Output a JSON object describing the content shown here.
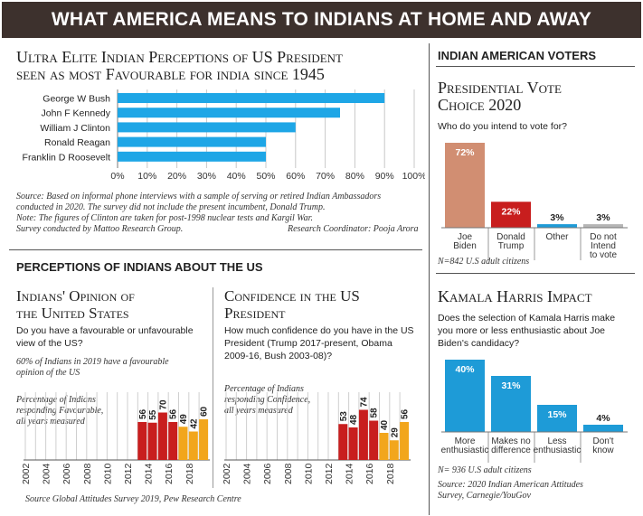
{
  "banner": {
    "title": "WHAT AMERICA MEANS TO INDIANS AT HOME AND AWAY"
  },
  "elite": {
    "title_line1": "Ultra Elite Indian Perceptions of US President",
    "title_line2": "seen as most Favourable for india since 1945",
    "source": "Source: Based on informal phone interviews with a sample of serving or retired Indian Ambassadors",
    "source2": "conducted in 2020. The survey did not include the present incumbent, Donald Trump.",
    "note": "Note: The figures of Clinton are taken for post-1998 nuclear tests and Kargil War.",
    "group": "Survey conducted by Mattoo Research Group.",
    "coordinator": "Research Coordinator: Pooja Arora"
  },
  "perceptions": {
    "header": "PERCEPTIONS OF INDIANS ABOUT THE US",
    "source": "Source Global Attitudes Survey 2019, Pew Research Centre"
  },
  "opinion": {
    "title_line1": "Indians' Opinion of",
    "title_line2": "the United States",
    "question_line1": "Do you have a favourable or unfavourable",
    "question_line2": "view of the US?",
    "stat_line1": "60% of Indians in 2019 have a favourable",
    "stat_line2": "opinion of the US",
    "desc_line1": "Percentage of Indians",
    "desc_line2": "responding Favourable,",
    "desc_line3": "all years measured"
  },
  "confidence": {
    "title_line1": "Confidence in the US",
    "title_line2": "President",
    "question_line1": "How much confidence do you have in the US",
    "question_line2": "President (Trump 2017-present, Obama",
    "question_line3": "2009-16, Bush 2003-08)?",
    "desc_line1": "Percentage of Indians",
    "desc_line2": "responding Confidence,",
    "desc_line3": "all years measured"
  },
  "voters": {
    "header": "INDIAN AMERICAN VOTERS",
    "title_line1": "Presidential Vote",
    "title_line2": "Choice 2020",
    "question": "Who do you intend to vote for?",
    "n": "N=842 U.S adult citizens"
  },
  "harris": {
    "title": "Kamala Harris Impact",
    "question_line1": "Does the selection of Kamala Harris make",
    "question_line2": "you more or less enthusiastic about Joe",
    "question_line3": "Biden's candidacy?",
    "n": "N= 936 U.S adult citizens",
    "source_line1": "Source: 2020 Indian American Attitudes",
    "source_line2": "Survey, Carnegie/YouGov"
  },
  "chart_data": [
    {
      "id": "elite",
      "type": "bar",
      "orientation": "horizontal",
      "categories": [
        "George W Bush",
        "John F Kennedy",
        "William J Clinton",
        "Ronald Reagan",
        "Franklin D Roosevelt"
      ],
      "values": [
        90,
        75,
        60,
        50,
        50
      ],
      "xlim": [
        0,
        100
      ],
      "ticks": [
        "0%",
        "10%",
        "20%",
        "30%",
        "40%",
        "50%",
        "60%",
        "70%",
        "80%",
        "90%",
        "100%"
      ],
      "color": "#1ea6e6",
      "grid": true
    },
    {
      "id": "opinion",
      "type": "bar",
      "years": [
        "2002",
        "2004",
        "2006",
        "2008",
        "2010",
        "2012",
        "2014",
        "2016",
        "2018"
      ],
      "categories": [
        "2013",
        "2014",
        "2015",
        "2016",
        "2017",
        "2018",
        "2019"
      ],
      "values": [
        56,
        55,
        70,
        56,
        49,
        42,
        60
      ],
      "labels": [
        "56",
        "55",
        "70",
        "56",
        "49",
        "42",
        "60"
      ],
      "colors": [
        "#c81e1e",
        "#c81e1e",
        "#c81e1e",
        "#c81e1e",
        "#f2a61c",
        "#f2a61c",
        "#f2a61c"
      ],
      "grid": true
    },
    {
      "id": "confidence",
      "type": "bar",
      "years": [
        "2002",
        "2004",
        "2006",
        "2008",
        "2010",
        "2012",
        "2014",
        "2016",
        "2018"
      ],
      "categories": [
        "2013",
        "2014",
        "2015",
        "2016",
        "2017",
        "2018",
        "2019"
      ],
      "values": [
        53,
        48,
        74,
        58,
        40,
        29,
        56
      ],
      "labels": [
        "53",
        "48",
        "74",
        "58",
        "40",
        "29",
        "56"
      ],
      "colors": [
        "#c81e1e",
        "#c81e1e",
        "#c81e1e",
        "#c81e1e",
        "#f2a61c",
        "#f2a61c",
        "#f2a61c"
      ],
      "grid": true
    },
    {
      "id": "vote",
      "type": "bar",
      "categories": [
        "Joe Biden",
        "Donald Trump",
        "Other",
        "Do not Intend to vote"
      ],
      "category_lines": [
        [
          "Joe",
          "Biden"
        ],
        [
          "Donald",
          "Trump"
        ],
        [
          "Other"
        ],
        [
          "Do not",
          "Intend",
          "to vote"
        ]
      ],
      "values": [
        72,
        22,
        3,
        3
      ],
      "labels": [
        "72%",
        "22%",
        "3%",
        "3%"
      ],
      "colors": [
        "#d18e72",
        "#c81e1e",
        "#1e9bd7",
        "#b5b5b5"
      ]
    },
    {
      "id": "harris",
      "type": "bar",
      "categories": [
        "More enthusiastic",
        "Makes no difference",
        "Less enthusiastic",
        "Don't know"
      ],
      "category_lines": [
        [
          "More",
          "enthusiastic"
        ],
        [
          "Makes no",
          "difference"
        ],
        [
          "Less",
          "enthusiastic"
        ],
        [
          "Don't",
          "know"
        ]
      ],
      "values": [
        40,
        31,
        15,
        4
      ],
      "labels": [
        "40%",
        "31%",
        "15%",
        "4%"
      ],
      "colors": [
        "#1e9bd7",
        "#1e9bd7",
        "#1e9bd7",
        "#1e9bd7"
      ]
    }
  ]
}
